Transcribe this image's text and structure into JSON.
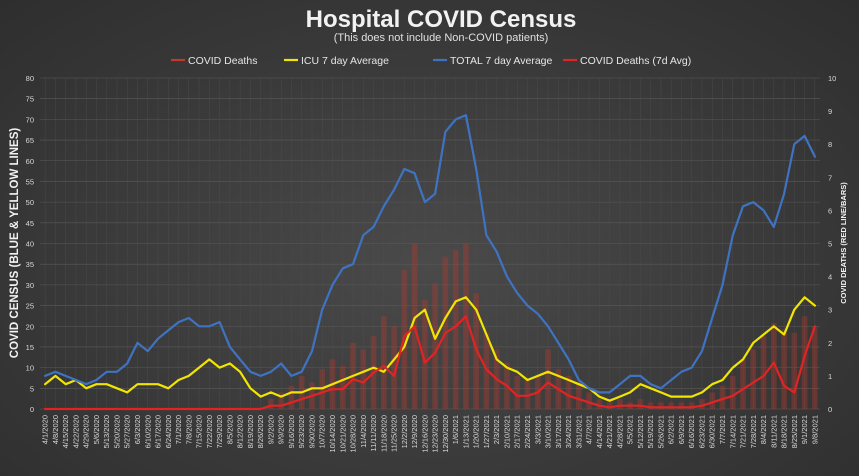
{
  "chart_data": {
    "type": "line",
    "title": "Hospital COVID Census",
    "subtitle": "(This does not include Non-COVID patients)",
    "ylabel_left": "COVID CENSUS (BLUE  & YELLOW LINES)",
    "ylabel_right": "COVID DEATHS (RED LINE/BARS)",
    "ylim_left": [
      0,
      80
    ],
    "ylim_right": [
      0,
      10
    ],
    "yticks_left": [
      "0",
      "5",
      "10",
      "15",
      "20",
      "25",
      "30",
      "35",
      "40",
      "45",
      "50",
      "55",
      "60",
      "65",
      "70",
      "75",
      "80"
    ],
    "yticks_right": [
      "0",
      "1",
      "2",
      "3",
      "4",
      "5",
      "6",
      "7",
      "8",
      "9",
      "10"
    ],
    "grid": true,
    "legend_position": "top",
    "categories": [
      "4/1/2020",
      "4/8/2020",
      "4/15/2020",
      "4/22/2020",
      "4/29/2020",
      "5/6/2020",
      "5/13/2020",
      "5/20/2020",
      "5/27/2020",
      "6/3/2020",
      "6/10/2020",
      "6/17/2020",
      "6/24/2020",
      "7/1/2020",
      "7/8/2020",
      "7/15/2020",
      "7/22/2020",
      "7/29/2020",
      "8/5/2020",
      "8/12/2020",
      "8/19/2020",
      "8/26/2020",
      "9/2/2020",
      "9/9/2020",
      "9/16/2020",
      "9/23/2020",
      "9/30/2020",
      "10/7/2020",
      "10/14/2020",
      "10/21/2020",
      "10/28/2020",
      "11/4/2020",
      "11/11/2020",
      "11/18/2020",
      "11/25/2020",
      "12/2/2020",
      "12/9/2020",
      "12/16/2020",
      "12/23/2020",
      "12/30/2020",
      "1/6/2021",
      "1/13/2021",
      "1/20/2021",
      "1/27/2021",
      "2/3/2021",
      "2/10/2021",
      "2/17/2021",
      "2/24/2021",
      "3/3/2021",
      "3/10/2021",
      "3/17/2021",
      "3/24/2021",
      "3/31/2021",
      "4/7/2021",
      "4/14/2021",
      "4/21/2021",
      "4/28/2021",
      "5/5/2021",
      "5/12/2021",
      "5/19/2021",
      "5/26/2021",
      "6/2/2021",
      "6/9/2021",
      "6/16/2021",
      "6/23/2021",
      "6/30/2021",
      "7/7/2021",
      "7/14/2021",
      "7/21/2021",
      "7/28/2021",
      "8/4/2021",
      "8/11/2021",
      "8/18/2021",
      "8/25/2021",
      "9/1/2021",
      "9/8/2021"
    ],
    "series": [
      {
        "name": "COVID Deaths",
        "axis": "right",
        "kind": "bar",
        "color": "#c0392b",
        "values": [
          0,
          0,
          0,
          0,
          0,
          0,
          0,
          0,
          0,
          0,
          0,
          0,
          0,
          0,
          0,
          0,
          0,
          0,
          0,
          0,
          0,
          0,
          0.3,
          0.5,
          0.7,
          1,
          0.8,
          1.2,
          1.5,
          1.3,
          2,
          1.8,
          2.2,
          2.8,
          2.5,
          4.2,
          5,
          3.3,
          3.8,
          4.6,
          4.8,
          5,
          3.5,
          2.3,
          1.8,
          1.4,
          1,
          0.9,
          1,
          1.8,
          1.2,
          1,
          0.8,
          0.5,
          0.3,
          0.2,
          0.3,
          0.2,
          0.3,
          0.2,
          0.2,
          0.2,
          0.2,
          0.2,
          0.3,
          0.5,
          0.7,
          1,
          1.5,
          1.8,
          2.2,
          2.6,
          2.4,
          2.3,
          2.8,
          2.5
        ]
      },
      {
        "name": "ICU 7 day Average",
        "axis": "left",
        "kind": "line",
        "color": "#f2e600",
        "values": [
          6,
          8,
          6,
          7,
          5,
          6,
          6,
          5,
          4,
          6,
          6,
          6,
          5,
          7,
          8,
          10,
          12,
          10,
          11,
          9,
          5,
          3,
          4,
          3,
          4,
          4,
          5,
          5,
          6,
          7,
          8,
          9,
          10,
          9,
          12,
          15,
          22,
          24,
          17,
          22,
          26,
          27,
          24,
          18,
          12,
          10,
          9,
          7,
          8,
          9,
          8,
          7,
          6,
          5,
          3,
          2,
          3,
          4,
          6,
          5,
          4,
          3,
          3,
          3,
          4,
          6,
          7,
          10,
          12,
          16,
          18,
          20,
          18,
          24,
          27,
          25
        ]
      },
      {
        "name": "TOTAL 7 day Average",
        "axis": "left",
        "kind": "line",
        "color": "#3f73c2",
        "values": [
          8,
          9,
          8,
          7,
          6,
          7,
          9,
          9,
          11,
          16,
          14,
          17,
          19,
          21,
          22,
          20,
          20,
          21,
          15,
          12,
          9,
          8,
          9,
          11,
          8,
          9,
          14,
          24,
          30,
          34,
          35,
          42,
          44,
          49,
          53,
          58,
          57,
          50,
          52,
          67,
          70,
          71,
          58,
          42,
          38,
          32,
          28,
          25,
          23,
          20,
          16,
          12,
          7,
          5,
          4,
          4,
          6,
          8,
          8,
          6,
          5,
          7,
          9,
          10,
          14,
          22,
          30,
          42,
          49,
          50,
          48,
          44,
          52,
          64,
          66,
          61
        ]
      },
      {
        "name": "COVID Deaths (7d Avg)",
        "axis": "right",
        "kind": "line",
        "color": "#e02424",
        "values": [
          0,
          0,
          0,
          0,
          0,
          0,
          0,
          0,
          0,
          0,
          0,
          0,
          0,
          0,
          0,
          0,
          0,
          0,
          0,
          0,
          0,
          0,
          0.1,
          0.1,
          0.2,
          0.3,
          0.4,
          0.5,
          0.6,
          0.6,
          0.9,
          0.8,
          1.1,
          1.3,
          1.0,
          2.2,
          2.5,
          1.4,
          1.7,
          2.3,
          2.5,
          2.8,
          1.8,
          1.2,
          0.9,
          0.7,
          0.4,
          0.4,
          0.5,
          0.8,
          0.6,
          0.4,
          0.3,
          0.2,
          0.1,
          0.05,
          0.1,
          0.1,
          0.1,
          0.05,
          0.05,
          0.05,
          0.05,
          0.05,
          0.1,
          0.2,
          0.3,
          0.4,
          0.6,
          0.8,
          1.0,
          1.4,
          0.7,
          0.5,
          1.6,
          2.5
        ]
      }
    ]
  },
  "legend": [
    {
      "label": "COVID Deaths",
      "color": "#c0392b"
    },
    {
      "label": "ICU 7 day Average",
      "color": "#f2e600"
    },
    {
      "label": "TOTAL 7 day Average",
      "color": "#3f73c2"
    },
    {
      "label": "COVID Deaths (7d Avg)",
      "color": "#e02424"
    }
  ]
}
